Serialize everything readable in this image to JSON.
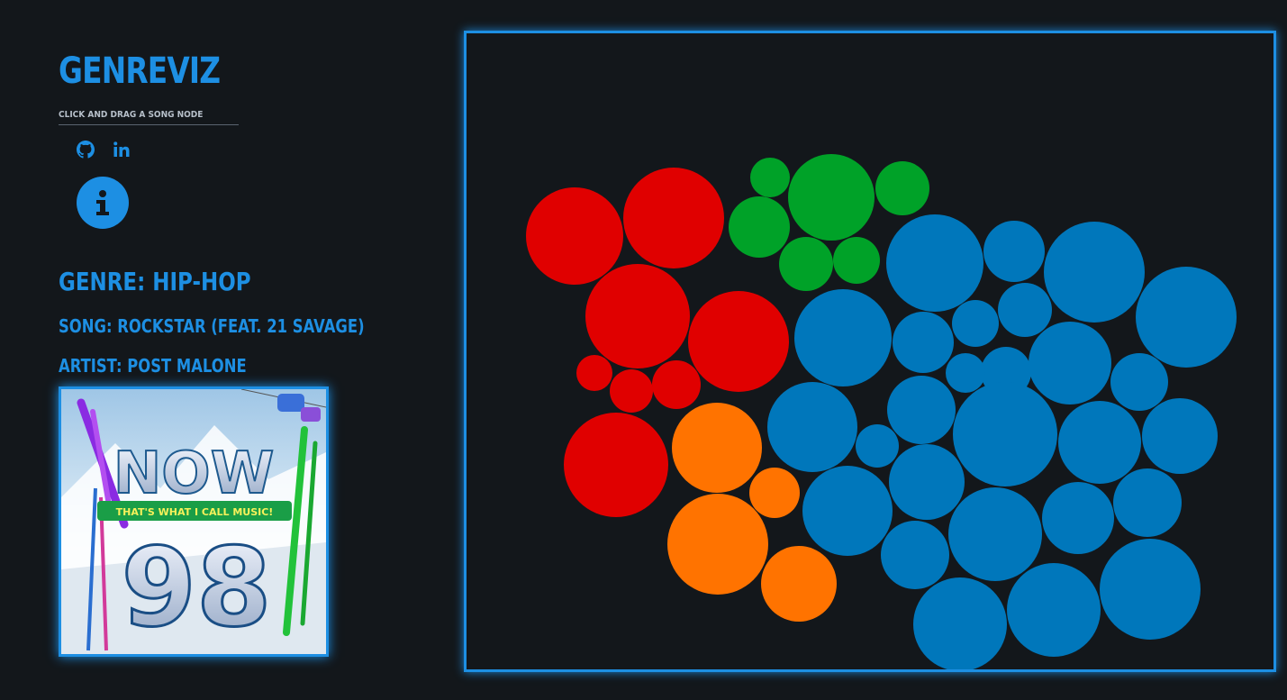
{
  "app": {
    "title": "GenreViz",
    "subtitle": "Click and drag a song node"
  },
  "social": {
    "github_icon": "github-icon",
    "linkedin_icon": "linkedin-icon"
  },
  "info": {
    "icon": "info-icon"
  },
  "selection": {
    "genre": "Genre: Hip-Hop",
    "song": "Song: Rockstar (feat. 21 Savage)",
    "artist": "Artist: Post Malone"
  },
  "album": {
    "brand_text": "NOW",
    "tagline": "THAT'S WHAT I CALL MUSIC!",
    "volume": "98"
  },
  "colors": {
    "accent": "#1d8fe3",
    "background": "#13171b",
    "hip_hop": "#e00000",
    "green_group": "#00a228",
    "orange_group": "#ff7300",
    "blue_group": "#0077bb"
  }
}
